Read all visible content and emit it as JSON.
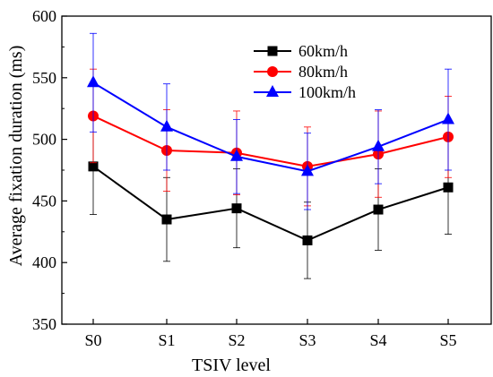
{
  "chart_data": {
    "type": "line",
    "xlabel": "TSIV level",
    "ylabel": "Average fixation duration (ms)",
    "categories": [
      "S0",
      "S1",
      "S2",
      "S3",
      "S4",
      "S5"
    ],
    "ylim": [
      350,
      600
    ],
    "yticks": [
      350,
      400,
      450,
      500,
      550,
      600
    ],
    "legend_position": "top-right",
    "grid": false,
    "series": [
      {
        "name": "60km/h",
        "color": "#000000",
        "marker": "square",
        "values": [
          478,
          435,
          444,
          418,
          443,
          461
        ],
        "errors": [
          39,
          34,
          32,
          31,
          33,
          38
        ]
      },
      {
        "name": "80km/h",
        "color": "#ff0000",
        "marker": "circle",
        "values": [
          519,
          491,
          489,
          478,
          488,
          502
        ],
        "errors": [
          38,
          33,
          34,
          32,
          35,
          33
        ]
      },
      {
        "name": "100km/h",
        "color": "#0000ff",
        "marker": "triangle",
        "values": [
          546,
          510,
          486,
          474,
          494,
          516
        ],
        "errors": [
          40,
          35,
          30,
          31,
          30,
          41
        ]
      }
    ]
  }
}
